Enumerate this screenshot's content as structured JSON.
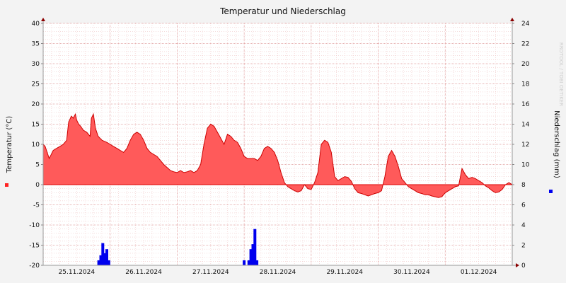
{
  "chart_data": {
    "type": "area",
    "title": "Temperatur und Niederschlag",
    "watermark": "RRDTOOL / TOBI OETIKER",
    "ylabel_left": "Temperatur (°C)",
    "ylabel_right": "Niederschlag (mm)",
    "ylim_left": [
      -20,
      40
    ],
    "ylim_right": [
      0,
      24
    ],
    "x_range_days": [
      0,
      7
    ],
    "x_tick_labels": [
      "25.11.2024",
      "26.11.2024",
      "27.11.2024",
      "28.11.2024",
      "29.11.2024",
      "30.11.2024",
      "01.12.2024"
    ],
    "grid": true,
    "colors": {
      "temp_positive": "#ff5a5a",
      "temp_negative": "#ff6666",
      "temp_line": "#cc0000",
      "precip": "#0000ee",
      "grid_minor": "#f0c8c8",
      "background": "#ffffff",
      "page": "#f3f3f3"
    },
    "temperature": {
      "name": "Temperatur",
      "x_days": [
        0.0,
        0.03,
        0.06,
        0.09,
        0.12,
        0.15,
        0.2,
        0.25,
        0.3,
        0.35,
        0.38,
        0.42,
        0.45,
        0.48,
        0.5,
        0.53,
        0.56,
        0.6,
        0.65,
        0.7,
        0.72,
        0.75,
        0.78,
        0.82,
        0.88,
        0.95,
        1.0,
        1.05,
        1.1,
        1.15,
        1.2,
        1.25,
        1.3,
        1.35,
        1.4,
        1.45,
        1.5,
        1.55,
        1.6,
        1.7,
        1.8,
        1.9,
        1.95,
        2.0,
        2.05,
        2.1,
        2.15,
        2.2,
        2.25,
        2.3,
        2.35,
        2.4,
        2.45,
        2.5,
        2.55,
        2.6,
        2.65,
        2.7,
        2.75,
        2.8,
        2.85,
        2.9,
        2.95,
        3.0,
        3.05,
        3.1,
        3.15,
        3.2,
        3.25,
        3.3,
        3.35,
        3.4,
        3.45,
        3.5,
        3.55,
        3.6,
        3.65,
        3.7,
        3.75,
        3.8,
        3.85,
        3.9,
        3.95,
        4.0,
        4.05,
        4.1,
        4.15,
        4.2,
        4.25,
        4.3,
        4.35,
        4.4,
        4.45,
        4.5,
        4.55,
        4.6,
        4.65,
        4.7,
        4.75,
        4.8,
        4.85,
        4.9,
        4.95,
        5.0,
        5.05,
        5.1,
        5.15,
        5.2,
        5.25,
        5.3,
        5.35,
        5.4,
        5.45,
        5.5,
        5.55,
        5.6,
        5.65,
        5.7,
        5.75,
        5.8,
        5.85,
        5.9,
        5.95,
        6.0,
        6.05,
        6.1,
        6.15,
        6.2,
        6.25,
        6.3,
        6.35,
        6.4,
        6.45,
        6.5,
        6.55,
        6.6,
        6.65,
        6.7,
        6.75,
        6.8,
        6.85,
        6.9,
        6.95,
        7.0
      ],
      "values": [
        10,
        9.5,
        8.0,
        6.5,
        7.5,
        8.5,
        9.0,
        9.5,
        10.0,
        11.0,
        15.5,
        17.0,
        16.5,
        17.5,
        16.0,
        15.0,
        14.5,
        13.5,
        13.0,
        12.0,
        16.5,
        17.5,
        14.0,
        12.0,
        11.0,
        10.5,
        10.0,
        9.5,
        9.0,
        8.5,
        8.0,
        9.0,
        11.0,
        12.5,
        13.0,
        12.5,
        11.0,
        9.0,
        8.0,
        7.0,
        5.0,
        3.5,
        3.2,
        3.0,
        3.5,
        3.0,
        3.2,
        3.5,
        3.0,
        3.5,
        5.0,
        10.0,
        14.0,
        15.0,
        14.5,
        13.0,
        11.5,
        10.0,
        12.5,
        12.0,
        11.0,
        10.5,
        9.0,
        7.0,
        6.5,
        6.5,
        6.5,
        6.0,
        7.0,
        9.0,
        9.5,
        9.0,
        8.0,
        6.0,
        3.0,
        0.5,
        -0.5,
        -1.0,
        -1.5,
        -1.8,
        -1.5,
        0.0,
        -1.0,
        -1.2,
        0.5,
        3.0,
        10.0,
        11.0,
        10.5,
        8.0,
        2.0,
        1.0,
        1.5,
        2.0,
        1.8,
        0.8,
        -1.0,
        -2.0,
        -2.2,
        -2.5,
        -2.8,
        -2.5,
        -2.2,
        -2.0,
        -1.5,
        2.0,
        7.0,
        8.5,
        7.0,
        4.5,
        1.5,
        0.5,
        -0.5,
        -1.0,
        -1.5,
        -2.0,
        -2.2,
        -2.5,
        -2.5,
        -2.8,
        -3.0,
        -3.2,
        -3.0,
        -2.0,
        -1.5,
        -1.0,
        -0.5,
        -0.3,
        4.0,
        2.5,
        1.5,
        1.8,
        1.5,
        1.0,
        0.5,
        -0.3,
        -0.8,
        -1.5,
        -2.0,
        -1.8,
        -1.2,
        0.0,
        0.5,
        0.0
      ]
    },
    "precipitation": {
      "name": "Niederschlag",
      "bars": [
        {
          "x_day": 0.83,
          "value": 0.5
        },
        {
          "x_day": 0.86,
          "value": 1.0
        },
        {
          "x_day": 0.89,
          "value": 2.2
        },
        {
          "x_day": 0.92,
          "value": 1.2
        },
        {
          "x_day": 0.95,
          "value": 1.6
        },
        {
          "x_day": 0.98,
          "value": 0.5
        },
        {
          "x_day": 3.0,
          "value": 0.5
        },
        {
          "x_day": 3.07,
          "value": 0.5
        },
        {
          "x_day": 3.1,
          "value": 1.6
        },
        {
          "x_day": 3.13,
          "value": 2.1
        },
        {
          "x_day": 3.16,
          "value": 3.6
        },
        {
          "x_day": 3.19,
          "value": 0.5
        }
      ]
    }
  }
}
